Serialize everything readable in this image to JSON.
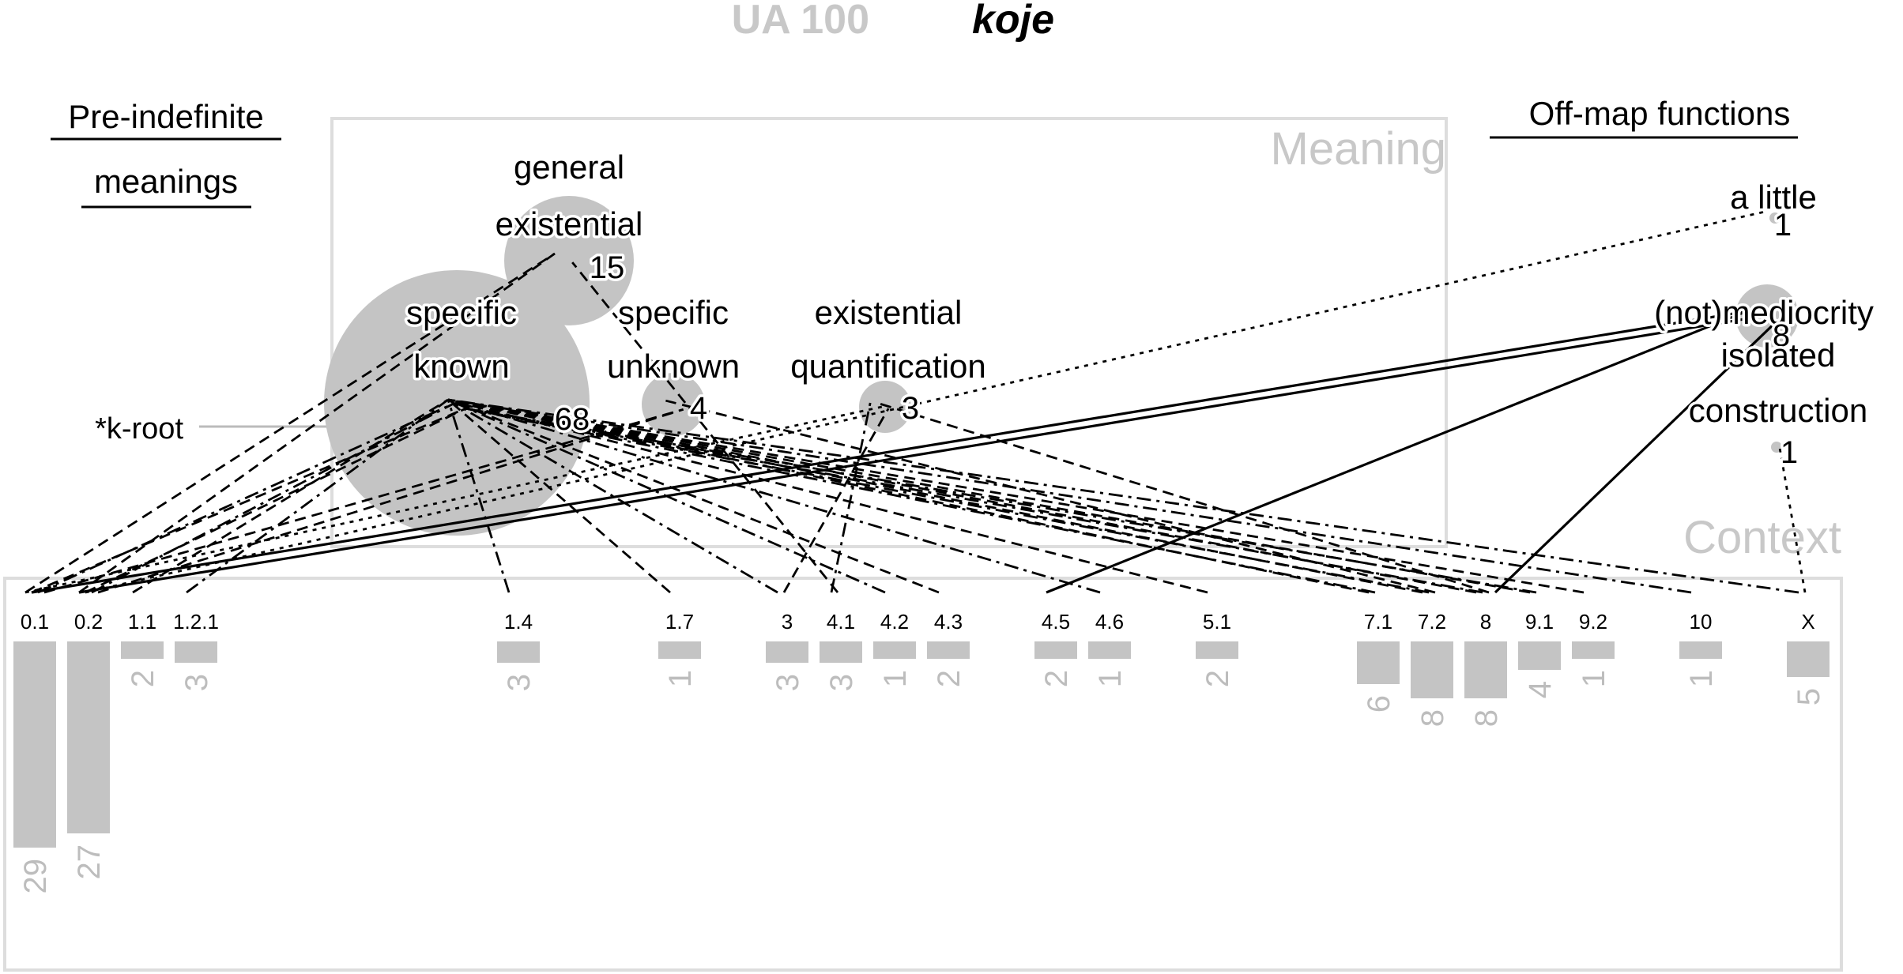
{
  "title": {
    "code": "UA 100",
    "word": "koje"
  },
  "headings": {
    "pre_indefinite_line1": "Pre-indefinite",
    "pre_indefinite_line2": "meanings",
    "off_map": "Off-map functions"
  },
  "panel_labels": {
    "meaning": "Meaning",
    "context": "Context"
  },
  "side_label": "*k-root",
  "meanings": [
    {
      "id": "general_existential",
      "lines": [
        "general",
        "existential"
      ],
      "count": "15"
    },
    {
      "id": "specific_known",
      "lines": [
        "specific",
        "known"
      ],
      "count": "68"
    },
    {
      "id": "specific_unknown",
      "lines": [
        "specific",
        "unknown"
      ],
      "count": "4"
    },
    {
      "id": "existential_quantification",
      "lines": [
        "existential",
        "quantification"
      ],
      "count": "3"
    }
  ],
  "off_map": [
    {
      "id": "a_little",
      "lines": [
        "a little"
      ],
      "count": "1"
    },
    {
      "id": "not_mediocrity",
      "lines": [
        "(not)mediocrity"
      ],
      "count": "8"
    },
    {
      "id": "isolated_construction",
      "lines": [
        "isolated",
        "construction"
      ],
      "count": "1"
    }
  ],
  "contexts": [
    {
      "label": "0.1",
      "count": "29"
    },
    {
      "label": "0.2",
      "count": "27"
    },
    {
      "label": "1.1",
      "count": "2"
    },
    {
      "label": "1.2.1",
      "count": "3"
    },
    {
      "label": "1.4",
      "count": "3"
    },
    {
      "label": "1.7",
      "count": "1"
    },
    {
      "label": "3",
      "count": "3"
    },
    {
      "label": "4.1",
      "count": "3"
    },
    {
      "label": "4.2",
      "count": "1"
    },
    {
      "label": "4.3",
      "count": "2"
    },
    {
      "label": "4.5",
      "count": "2"
    },
    {
      "label": "4.6",
      "count": "1"
    },
    {
      "label": "5.1",
      "count": "2"
    },
    {
      "label": "7.1",
      "count": "6"
    },
    {
      "label": "7.2",
      "count": "8"
    },
    {
      "label": "8",
      "count": "8"
    },
    {
      "label": "9.1",
      "count": "4"
    },
    {
      "label": "9.2",
      "count": "1"
    },
    {
      "label": "10",
      "count": "1"
    },
    {
      "label": "X",
      "count": "5"
    }
  ],
  "links": [
    {
      "from": "0.1",
      "to": "general_existential",
      "style": "dashed"
    },
    {
      "from": "0.1",
      "to": "specific_known",
      "style": "dashed"
    },
    {
      "from": "0.1",
      "to": "specific_known",
      "style": "dashdot"
    },
    {
      "from": "0.1",
      "to": "specific_unknown",
      "style": "dashed"
    },
    {
      "from": "0.1",
      "to": "existential_quantification",
      "style": "dotted"
    },
    {
      "from": "0.1",
      "to": "not_mediocrity",
      "style": "solid"
    },
    {
      "from": "0.2",
      "to": "general_existential",
      "style": "dashed"
    },
    {
      "from": "0.2",
      "to": "specific_known",
      "style": "dashed"
    },
    {
      "from": "0.2",
      "to": "specific_known",
      "style": "dashdot"
    },
    {
      "from": "0.2",
      "to": "specific_unknown",
      "style": "dashed"
    },
    {
      "from": "0.2",
      "to": "not_mediocrity",
      "style": "solid"
    },
    {
      "from": "0.2",
      "to": "a_little",
      "style": "dotted"
    },
    {
      "from": "1.1",
      "to": "specific_known",
      "style": "dashed"
    },
    {
      "from": "1.2.1",
      "to": "specific_known",
      "style": "dashdot"
    },
    {
      "from": "1.4",
      "to": "specific_known",
      "style": "dashdot"
    },
    {
      "from": "1.7",
      "to": "specific_known",
      "style": "dashed"
    },
    {
      "from": "3",
      "to": "specific_known",
      "style": "dashdot"
    },
    {
      "from": "3",
      "to": "existential_quantification",
      "style": "dashed"
    },
    {
      "from": "4.1",
      "to": "existential_quantification",
      "style": "dashdot"
    },
    {
      "from": "4.1",
      "to": "general_existential",
      "style": "dashed"
    },
    {
      "from": "4.2",
      "to": "specific_known",
      "style": "dashdot"
    },
    {
      "from": "4.3",
      "to": "specific_known",
      "style": "dashed"
    },
    {
      "from": "4.5",
      "to": "not_mediocrity",
      "style": "solid"
    },
    {
      "from": "4.6",
      "to": "specific_known",
      "style": "dashdot"
    },
    {
      "from": "5.1",
      "to": "specific_known",
      "style": "dashed"
    },
    {
      "from": "7.1",
      "to": "specific_known",
      "style": "dashed"
    },
    {
      "from": "7.1",
      "to": "specific_known",
      "style": "dashdot"
    },
    {
      "from": "7.2",
      "to": "specific_known",
      "style": "dashed"
    },
    {
      "from": "7.2",
      "to": "specific_known",
      "style": "dashdot"
    },
    {
      "from": "7.2",
      "to": "specific_unknown",
      "style": "dashed"
    },
    {
      "from": "8",
      "to": "specific_known",
      "style": "dashed"
    },
    {
      "from": "8",
      "to": "specific_known",
      "style": "dashdot"
    },
    {
      "from": "8",
      "to": "existential_quantification",
      "style": "dashed"
    },
    {
      "from": "8",
      "to": "not_mediocrity",
      "style": "solid"
    },
    {
      "from": "9.1",
      "to": "specific_known",
      "style": "dashed"
    },
    {
      "from": "9.1",
      "to": "specific_known",
      "style": "dashdot"
    },
    {
      "from": "9.2",
      "to": "specific_known",
      "style": "dashed"
    },
    {
      "from": "10",
      "to": "specific_known",
      "style": "dashdot"
    },
    {
      "from": "X",
      "to": "specific_known",
      "style": "dashdot"
    },
    {
      "from": "X",
      "to": "isolated_construction",
      "style": "dotted"
    }
  ]
}
